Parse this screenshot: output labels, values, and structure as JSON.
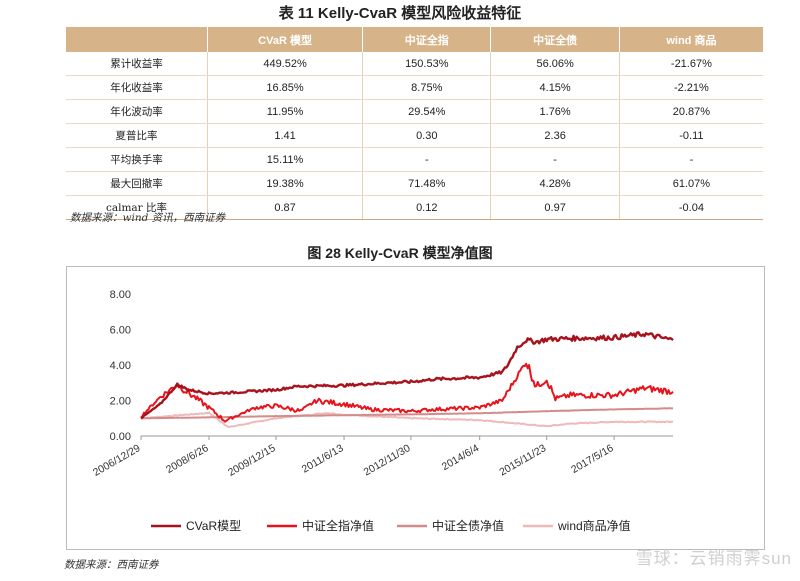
{
  "table": {
    "caption": "表 11 Kelly-CvaR 模型风险收益特征",
    "headers": [
      "",
      "CVaR 模型",
      "中证全指",
      "中证全债",
      "wind 商品"
    ],
    "rows": [
      [
        "累计收益率",
        "449.52%",
        "150.53%",
        "56.06%",
        "-21.67%"
      ],
      [
        "年化收益率",
        "16.85%",
        "8.75%",
        "4.15%",
        "-2.21%"
      ],
      [
        "年化波动率",
        "11.95%",
        "29.54%",
        "1.76%",
        "20.87%"
      ],
      [
        "夏普比率",
        "1.41",
        "0.30",
        "2.36",
        "-0.11"
      ],
      [
        "平均换手率",
        "15.11%",
        "-",
        "-",
        "-"
      ],
      [
        "最大回撤率",
        "19.38%",
        "71.48%",
        "4.28%",
        "61.07%"
      ],
      [
        "calmar 比率",
        "0.87",
        "0.12",
        "0.97",
        "-0.04"
      ]
    ],
    "source": "数据来源：wind 资讯，西南证券"
  },
  "figure": {
    "caption": "图 28 Kelly-CvaR 模型净值图",
    "source": "数据来源：西南证券"
  },
  "watermark": "雪球：云销雨霁sun",
  "chart_data": {
    "type": "line",
    "title": "",
    "xlabel": "",
    "ylabel": "",
    "ylim": [
      0,
      8
    ],
    "yticks": [
      "0.00",
      "2.00",
      "4.00",
      "6.00",
      "8.00"
    ],
    "x_range": [
      "2006-12-29",
      "2018-08-31"
    ],
    "xticks": [
      {
        "label": "2006/12/29",
        "date": "2006-12-29"
      },
      {
        "label": "2008/6/26",
        "date": "2008-06-26"
      },
      {
        "label": "2009/12/15",
        "date": "2009-12-15"
      },
      {
        "label": "2011/6/13",
        "date": "2011-06-13"
      },
      {
        "label": "2012/11/30",
        "date": "2012-11-30"
      },
      {
        "label": "2014/6/4",
        "date": "2014-06-04"
      },
      {
        "label": "2015/11/23",
        "date": "2015-11-23"
      },
      {
        "label": "2017/5/16",
        "date": "2017-05-16"
      }
    ],
    "grid": false,
    "legend_position": "bottom",
    "series": [
      {
        "name": "CVaR模型",
        "color": "#a8121c",
        "points": [
          [
            "2006-12-29",
            1.0
          ],
          [
            "2007-06-01",
            1.8
          ],
          [
            "2007-10-16",
            2.9
          ],
          [
            "2008-01-15",
            2.6
          ],
          [
            "2008-06-26",
            2.4
          ],
          [
            "2009-01-01",
            2.45
          ],
          [
            "2009-12-15",
            2.6
          ],
          [
            "2010-06-01",
            2.8
          ],
          [
            "2011-06-13",
            2.85
          ],
          [
            "2012-06-01",
            3.0
          ],
          [
            "2012-11-30",
            3.05
          ],
          [
            "2013-06-01",
            3.2
          ],
          [
            "2014-06-04",
            3.3
          ],
          [
            "2014-12-01",
            3.6
          ],
          [
            "2015-01-15",
            4.0
          ],
          [
            "2015-04-01",
            5.0
          ],
          [
            "2015-06-12",
            5.4
          ],
          [
            "2015-09-01",
            5.3
          ],
          [
            "2015-11-23",
            5.45
          ],
          [
            "2016-06-01",
            5.5
          ],
          [
            "2017-05-16",
            5.55
          ],
          [
            "2018-01-15",
            5.75
          ],
          [
            "2018-08-31",
            5.4
          ]
        ]
      },
      {
        "name": "中证全指净值",
        "color": "#e8141c",
        "points": [
          [
            "2006-12-29",
            1.1
          ],
          [
            "2007-06-01",
            2.2
          ],
          [
            "2007-10-16",
            2.9
          ],
          [
            "2008-03-01",
            2.2
          ],
          [
            "2008-06-26",
            1.6
          ],
          [
            "2008-11-01",
            0.85
          ],
          [
            "2009-07-01",
            1.6
          ],
          [
            "2009-12-15",
            1.7
          ],
          [
            "2010-07-01",
            1.4
          ],
          [
            "2010-11-01",
            2.0
          ],
          [
            "2011-06-13",
            1.8
          ],
          [
            "2012-01-01",
            1.5
          ],
          [
            "2012-11-30",
            1.4
          ],
          [
            "2013-06-01",
            1.5
          ],
          [
            "2014-06-04",
            1.6
          ],
          [
            "2014-12-01",
            2.0
          ],
          [
            "2015-06-12",
            4.2
          ],
          [
            "2015-09-01",
            2.8
          ],
          [
            "2015-11-23",
            3.2
          ],
          [
            "2016-02-01",
            2.1
          ],
          [
            "2016-06-01",
            2.3
          ],
          [
            "2017-05-16",
            2.3
          ],
          [
            "2018-01-15",
            2.7
          ],
          [
            "2018-08-31",
            2.5
          ]
        ]
      },
      {
        "name": "中证全债净值",
        "color": "#d38c8c",
        "points": [
          [
            "2006-12-29",
            1.0
          ],
          [
            "2008-06-26",
            1.05
          ],
          [
            "2009-12-15",
            1.12
          ],
          [
            "2011-06-13",
            1.17
          ],
          [
            "2012-11-30",
            1.22
          ],
          [
            "2014-06-04",
            1.28
          ],
          [
            "2015-11-23",
            1.4
          ],
          [
            "2017-05-16",
            1.5
          ],
          [
            "2018-08-31",
            1.56
          ]
        ]
      },
      {
        "name": "wind商品净值",
        "color": "#f0b8b8",
        "points": [
          [
            "2006-12-29",
            1.0
          ],
          [
            "2008-06-26",
            1.3
          ],
          [
            "2008-12-01",
            0.5
          ],
          [
            "2009-12-15",
            1.0
          ],
          [
            "2011-02-01",
            1.3
          ],
          [
            "2011-06-13",
            1.2
          ],
          [
            "2012-11-30",
            1.0
          ],
          [
            "2014-06-04",
            0.9
          ],
          [
            "2015-11-23",
            0.55
          ],
          [
            "2016-06-01",
            0.7
          ],
          [
            "2017-05-16",
            0.8
          ],
          [
            "2018-08-31",
            0.8
          ]
        ]
      }
    ]
  }
}
